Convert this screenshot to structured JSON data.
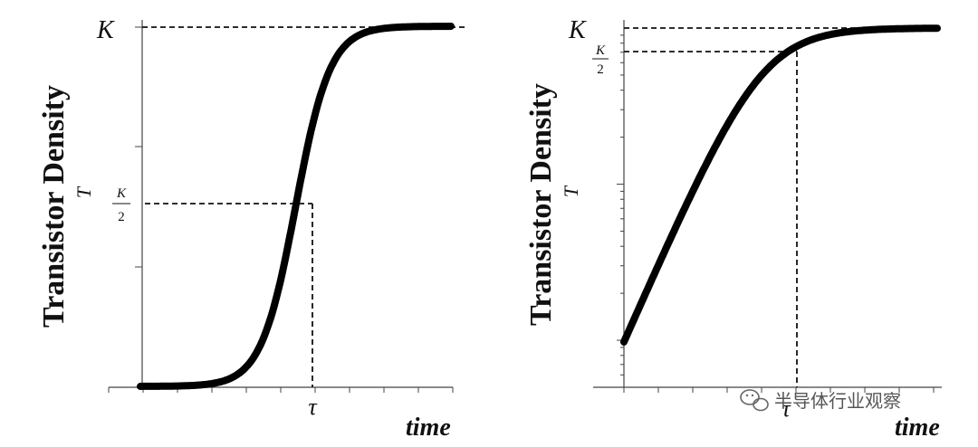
{
  "chart_data": [
    {
      "type": "line",
      "curve": "logistic (S-curve)",
      "y_axis_label": "Transistor Density",
      "y_symbol": "T",
      "x_axis_label": "time",
      "y_scale": "linear",
      "y_ticks": [
        "K",
        "K/2"
      ],
      "x_ticks": [
        "τ"
      ],
      "asymptote_label": "K",
      "half_label_num": "K",
      "half_label_den": "2",
      "tau_label": "τ",
      "xlim": [
        -5,
        5
      ],
      "ylim": [
        0,
        1
      ],
      "x": [
        -5,
        -4.5,
        -4,
        -3.5,
        -3,
        -2.5,
        -2,
        -1.5,
        -1,
        -0.5,
        0,
        0.5,
        1,
        1.5,
        2,
        2.5,
        3,
        3.5,
        4,
        4.5,
        5
      ],
      "y": [
        0.0,
        0.0,
        0.0,
        0.0,
        0.002,
        0.007,
        0.018,
        0.047,
        0.119,
        0.269,
        0.5,
        0.731,
        0.881,
        0.953,
        0.982,
        0.993,
        0.998,
        1.0,
        1.0,
        1.0,
        1.0
      ],
      "grid": false
    },
    {
      "type": "line",
      "curve": "logistic on log scale",
      "y_axis_label": "Transistor Density",
      "y_symbol": "T",
      "x_axis_label": "time",
      "y_scale": "log",
      "y_ticks": [
        "K",
        "K/2"
      ],
      "x_ticks": [
        "τ"
      ],
      "asymptote_label": "K",
      "half_label_num": "K",
      "half_label_den": "2",
      "tau_label": "τ",
      "xlim": [
        -5,
        5
      ],
      "ylim": [
        0.005,
        1
      ],
      "x": [
        -4.2,
        -3.5,
        -3,
        -2.5,
        -2,
        -1.5,
        -1,
        -0.5,
        0,
        0.5,
        1,
        1.5,
        2,
        2.5,
        3,
        4,
        5
      ],
      "y": [
        0.005,
        0.01,
        0.017,
        0.028,
        0.046,
        0.075,
        0.12,
        0.19,
        0.29,
        0.42,
        0.58,
        0.73,
        0.85,
        0.93,
        0.97,
        1.0,
        1.0
      ],
      "grid": false
    }
  ],
  "watermark": "半导体行业观察"
}
